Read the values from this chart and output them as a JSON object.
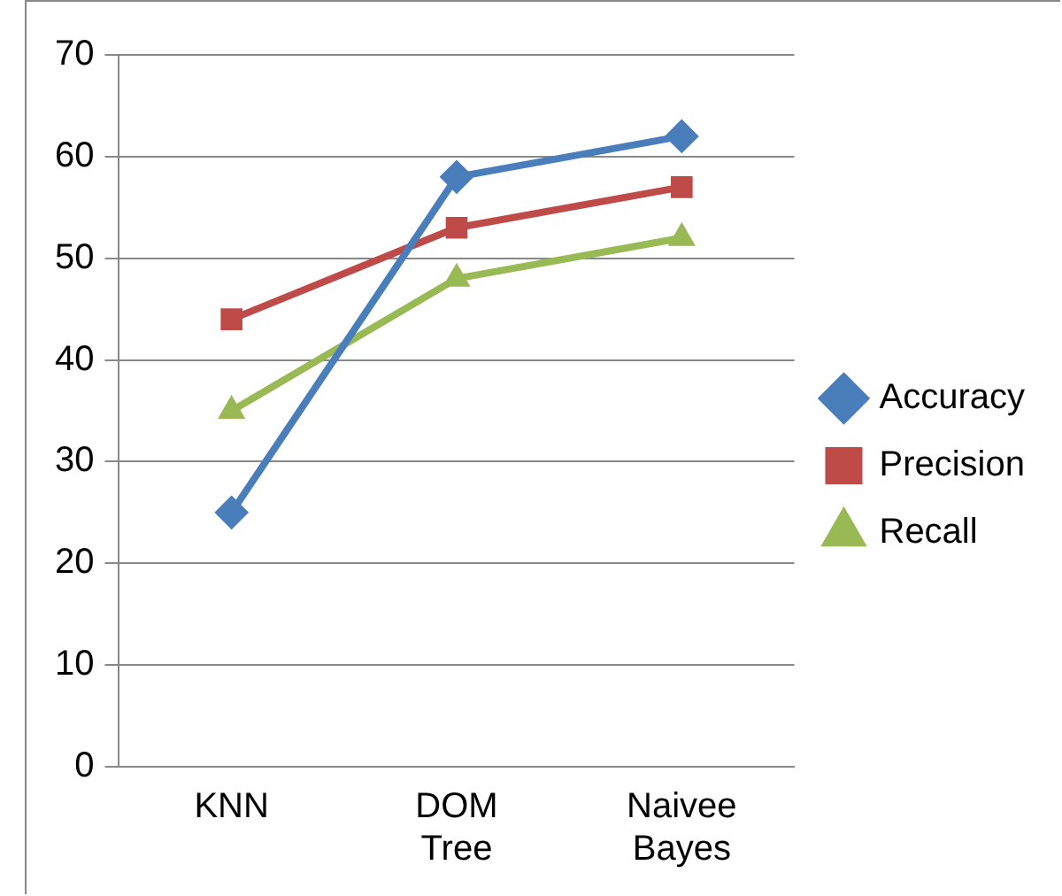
{
  "chart_data": {
    "type": "line",
    "categories": [
      "KNN",
      "DOM Tree",
      "Naivee Bayes"
    ],
    "series": [
      {
        "name": "Accuracy",
        "color": "#4a7ebb",
        "marker": "diamond",
        "values": [
          25,
          58,
          62
        ]
      },
      {
        "name": "Precision",
        "color": "#be4b48",
        "marker": "square",
        "values": [
          44,
          53,
          57
        ]
      },
      {
        "name": "Recall",
        "color": "#98b954",
        "marker": "triangle",
        "values": [
          35,
          48,
          52
        ]
      }
    ],
    "ylim": [
      0,
      70
    ],
    "yticks": [
      0,
      10,
      20,
      30,
      40,
      50,
      60,
      70
    ],
    "grid": "y",
    "legend": "right",
    "line_style": "solid"
  }
}
